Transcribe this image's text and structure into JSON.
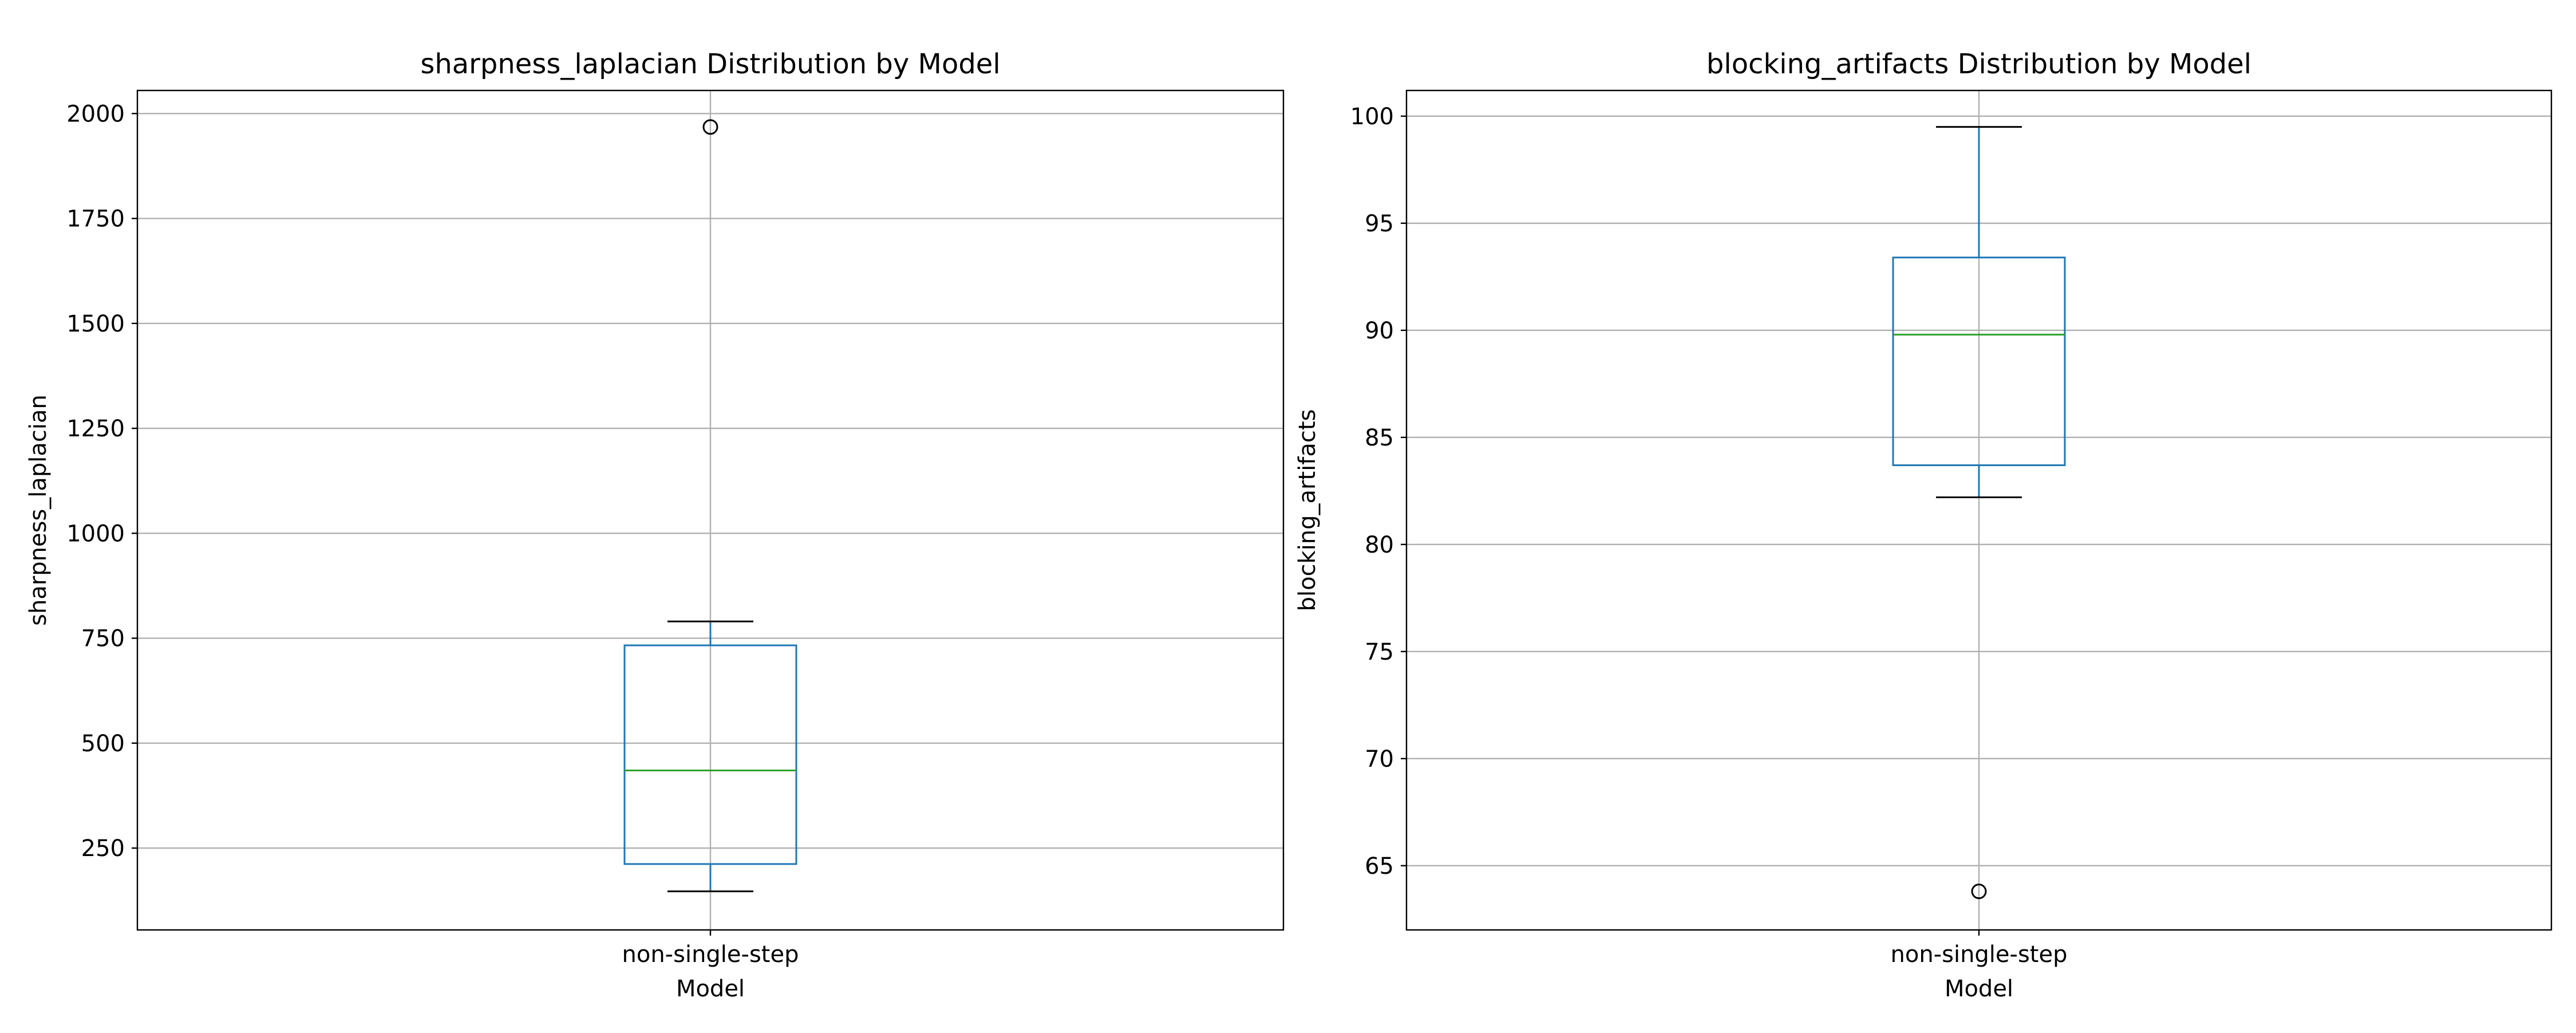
{
  "colors": {
    "box": "#1f77b4",
    "median": "#2ca02c",
    "whisker": "#1f77b4",
    "cap": "#000000",
    "grid": "#b0b0b0",
    "axes": "#000000",
    "flier": "#000000"
  },
  "chart_data": [
    {
      "type": "box",
      "title": "sharpness_laplacian Distribution by Model",
      "xlabel": "Model",
      "ylabel": "sharpness_laplacian",
      "grid": true,
      "ylim": [
        55,
        2055
      ],
      "yticks": [
        250,
        500,
        750,
        1000,
        1250,
        1500,
        1750,
        2000
      ],
      "categories": [
        "non-single-step"
      ],
      "boxes": [
        {
          "category": "non-single-step",
          "whisker_low": 147,
          "q1": 212,
          "median": 435,
          "q3": 733,
          "whisker_high": 790,
          "fliers": [
            1968
          ]
        }
      ]
    },
    {
      "type": "box",
      "title": "blocking_artifacts Distribution by Model",
      "xlabel": "Model",
      "ylabel": "blocking_artifacts",
      "grid": true,
      "ylim": [
        62,
        101.2
      ],
      "yticks": [
        65,
        70,
        75,
        80,
        85,
        90,
        95,
        100
      ],
      "categories": [
        "non-single-step"
      ],
      "boxes": [
        {
          "category": "non-single-step",
          "whisker_low": 82.2,
          "q1": 83.7,
          "median": 89.8,
          "q3": 93.4,
          "whisker_high": 99.5,
          "fliers": [
            63.8
          ]
        }
      ]
    }
  ]
}
